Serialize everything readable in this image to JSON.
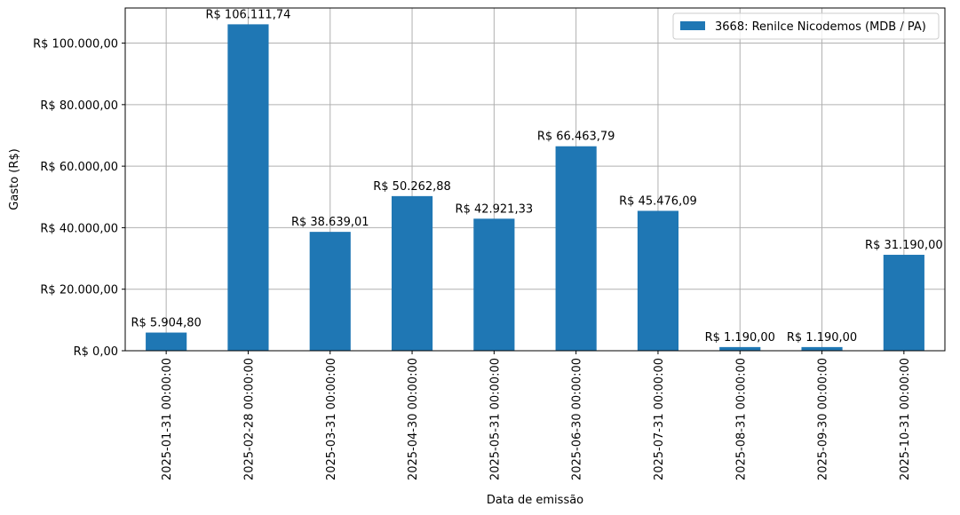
{
  "chart_data": {
    "type": "bar",
    "categories": [
      "2025-01-31 00:00:00",
      "2025-02-28 00:00:00",
      "2025-03-31 00:00:00",
      "2025-04-30 00:00:00",
      "2025-05-31 00:00:00",
      "2025-06-30 00:00:00",
      "2025-07-31 00:00:00",
      "2025-08-31 00:00:00",
      "2025-09-30 00:00:00",
      "2025-10-31 00:00:00"
    ],
    "series": [
      {
        "name": "3668: Renilce Nicodemos (MDB / PA)",
        "values": [
          5904.8,
          106111.74,
          38639.01,
          50262.88,
          42921.33,
          66463.79,
          45476.09,
          1190.0,
          1190.0,
          31190.0
        ],
        "data_labels": [
          "R$ 5.904,80",
          "R$ 106.111,74",
          "R$ 38.639,01",
          "R$ 50.262,88",
          "R$ 42.921,33",
          "R$ 66.463,79",
          "R$ 45.476,09",
          "R$ 1.190,00",
          "R$ 1.190,00",
          "R$ 31.190,00"
        ],
        "color": "#1f77b4"
      }
    ],
    "title": "",
    "xlabel": "Data de emissão",
    "ylabel": "Gasto (R$)",
    "ylim": [
      0,
      111417
    ],
    "yticks": [
      0,
      20000,
      40000,
      60000,
      80000,
      100000
    ],
    "ytick_labels": [
      "R$ 0,00",
      "R$ 20.000,00",
      "R$ 40.000,00",
      "R$ 60.000,00",
      "R$ 80.000,00",
      "R$ 100.000,00"
    ],
    "grid": true,
    "legend_position": "top-right",
    "grid_color": "#b0b0b0"
  }
}
